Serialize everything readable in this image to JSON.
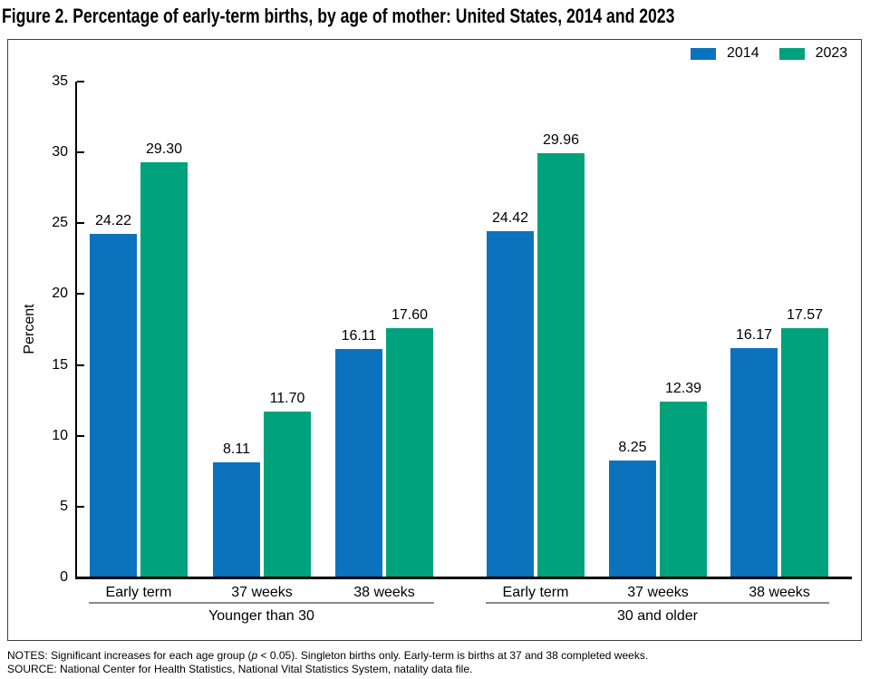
{
  "title": "Figure 2. Percentage of early-term births, by age of mother: United States, 2014 and 2023",
  "chart_data": {
    "type": "bar",
    "ylabel": "Percent",
    "ylim": [
      0,
      35
    ],
    "yticks": [
      0,
      5,
      10,
      15,
      20,
      25,
      30,
      35
    ],
    "grid": false,
    "legend_position": "top-right",
    "value_labels": true,
    "value_label_decimals": 2,
    "categories": [
      "Early term",
      "37 weeks",
      "38 weeks",
      "Early term",
      "37 weeks",
      "38 weeks"
    ],
    "groups": [
      {
        "label": "Younger than 30",
        "category_indexes": [
          0,
          1,
          2
        ]
      },
      {
        "label": "30 and older",
        "category_indexes": [
          3,
          4,
          5
        ]
      }
    ],
    "series": [
      {
        "name": "2014",
        "color": "#0d72bd",
        "values": [
          24.22,
          8.11,
          16.11,
          24.42,
          8.25,
          16.17
        ]
      },
      {
        "name": "2023",
        "color": "#00a27c",
        "values": [
          29.3,
          11.7,
          17.6,
          29.96,
          12.39,
          17.57
        ]
      }
    ]
  },
  "notes": {
    "line1_pre": "NOTES: Significant increases for each age group (",
    "line1_italic": "p",
    "line1_post": " < 0.05). Singleton births only. Early-term is births at 37 and 38 completed weeks.",
    "line2": "SOURCE: National Center for Health Statistics, National Vital Statistics System, natality data file."
  }
}
